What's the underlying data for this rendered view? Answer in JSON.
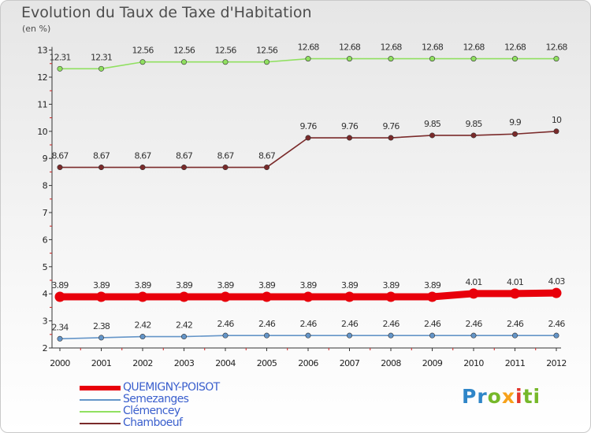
{
  "chart_data": {
    "type": "line",
    "title": "Evolution du Taux de Taxe d'Habitation",
    "subtitle": "(en %)",
    "xlabel": "",
    "ylabel": "",
    "x": [
      "2000",
      "2001",
      "2002",
      "2003",
      "2004",
      "2005",
      "2006",
      "2007",
      "2008",
      "2009",
      "2010",
      "2011",
      "2012"
    ],
    "ylim": [
      2,
      13
    ],
    "yticks": [
      2,
      3,
      4,
      5,
      6,
      7,
      8,
      9,
      10,
      11,
      12,
      13
    ],
    "grid": false,
    "legend_position": "bottom-left",
    "series": [
      {
        "name": "QUEMIGNY-POISOT",
        "color": "#e8000b",
        "emphasis": true,
        "values": [
          3.89,
          3.89,
          3.89,
          3.89,
          3.89,
          3.89,
          3.89,
          3.89,
          3.89,
          3.89,
          4.01,
          4.01,
          4.03
        ],
        "labels": [
          "3.89",
          "3.89",
          "3.89",
          "3.89",
          "3.89",
          "3.89",
          "3.89",
          "3.89",
          "3.89",
          "3.89",
          "4.01",
          "4.01",
          "4.03"
        ]
      },
      {
        "name": "Semezanges",
        "color": "#6495c8",
        "emphasis": false,
        "values": [
          2.34,
          2.38,
          2.42,
          2.42,
          2.46,
          2.46,
          2.46,
          2.46,
          2.46,
          2.46,
          2.46,
          2.46,
          2.46
        ],
        "labels": [
          "2.34",
          "2.38",
          "2.42",
          "2.42",
          "2.46",
          "2.46",
          "2.46",
          "2.46",
          "2.46",
          "2.46",
          "2.46",
          "2.46",
          "2.46"
        ]
      },
      {
        "name": "Clémencey",
        "color": "#90e060",
        "emphasis": false,
        "values": [
          12.31,
          12.31,
          12.56,
          12.56,
          12.56,
          12.56,
          12.68,
          12.68,
          12.68,
          12.68,
          12.68,
          12.68,
          12.68
        ],
        "labels": [
          "12.31",
          "12.31",
          "12.56",
          "12.56",
          "12.56",
          "12.56",
          "12.68",
          "12.68",
          "12.68",
          "12.68",
          "12.68",
          "12.68",
          "12.68"
        ]
      },
      {
        "name": "Chamboeuf",
        "color": "#7a2a2a",
        "emphasis": false,
        "values": [
          8.67,
          8.67,
          8.67,
          8.67,
          8.67,
          8.67,
          9.76,
          9.76,
          9.76,
          9.85,
          9.85,
          9.9,
          10
        ],
        "labels": [
          "8.67",
          "8.67",
          "8.67",
          "8.67",
          "8.67",
          "8.67",
          "9.76",
          "9.76",
          "9.76",
          "9.85",
          "9.85",
          "9.9",
          "10"
        ]
      }
    ]
  },
  "branding": {
    "logo_text": [
      "Pr",
      "o",
      "x",
      "i",
      "ti"
    ]
  }
}
